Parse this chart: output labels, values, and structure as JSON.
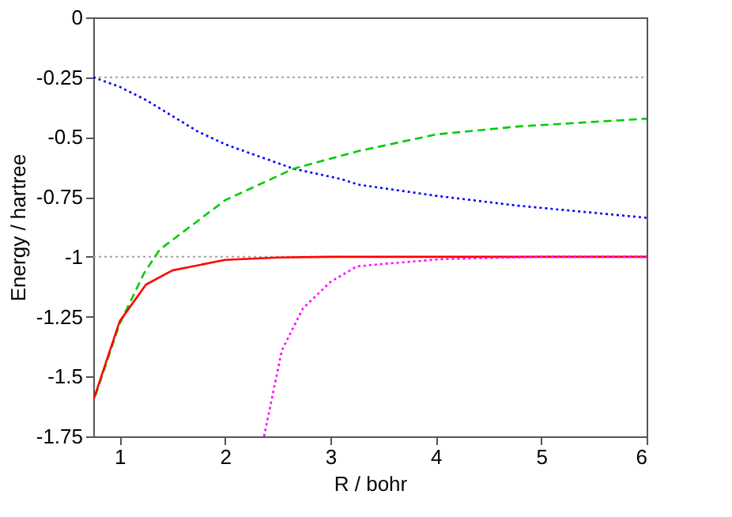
{
  "chart_data": {
    "type": "line",
    "xlabel": "R / bohr",
    "ylabel": "Energy / hartree",
    "xlim": [
      0.75,
      6
    ],
    "ylim": [
      -1.75,
      0
    ],
    "xticks": [
      1,
      2,
      3,
      4,
      5,
      6
    ],
    "yticks": [
      {
        "value": -1.75,
        "label": "-1.75"
      },
      {
        "value": -1.5,
        "label": "-1.5"
      },
      {
        "value": -1.25,
        "label": "-1.25"
      },
      {
        "value": -1,
        "label": "-1"
      },
      {
        "value": -0.75,
        "label": "-0.75"
      },
      {
        "value": -0.5,
        "label": "-0.5"
      },
      {
        "value": -0.25,
        "label": "-0.25"
      },
      {
        "value": 0,
        "label": "0"
      }
    ],
    "grid": false,
    "ref_lines": [
      {
        "axis": "y",
        "value": -0.25,
        "color": "#a0a0a0",
        "line_style": "dotted"
      },
      {
        "axis": "y",
        "value": -1,
        "color": "#a0a0a0",
        "line_style": "dotted"
      }
    ],
    "series": [
      {
        "color": "#0000ff",
        "line_style": "dotted",
        "x": [
          0.75,
          1.0,
          1.25,
          1.74,
          2.0,
          2.65,
          3.11,
          3.26,
          4.0,
          4.77,
          6.0
        ],
        "values": [
          -0.25,
          -0.29,
          -0.345,
          -0.476,
          -0.53,
          -0.632,
          -0.676,
          -0.698,
          -0.745,
          -0.786,
          -0.837
        ]
      },
      {
        "color": "#00cc00",
        "line_style": "dashed",
        "x": [
          0.77,
          1.0,
          1.23,
          1.38,
          2.0,
          2.65,
          3.26,
          4.0,
          4.77,
          6.0
        ],
        "values": [
          -1.58,
          -1.28,
          -1.07,
          -0.97,
          -0.764,
          -0.632,
          -0.559,
          -0.489,
          -0.456,
          -0.423
        ]
      },
      {
        "color": "#ff0000",
        "line_style": "solid",
        "x": [
          0.75,
          1.0,
          1.25,
          1.5,
          2.0,
          2.5,
          3.0,
          4.0,
          6.0
        ],
        "values": [
          -1.6,
          -1.27,
          -1.116,
          -1.057,
          -1.013,
          -1.003,
          -1.0,
          -1.0,
          -1.0
        ]
      },
      {
        "color": "#ff00ff",
        "line_style": "dotted",
        "x": [
          2.37,
          2.54,
          2.74,
          3.0,
          3.25,
          3.55,
          4.05,
          5.0,
          6.0
        ],
        "values": [
          -1.75,
          -1.39,
          -1.215,
          -1.105,
          -1.04,
          -1.028,
          -1.01,
          -1.0,
          -1.0
        ]
      }
    ]
  }
}
